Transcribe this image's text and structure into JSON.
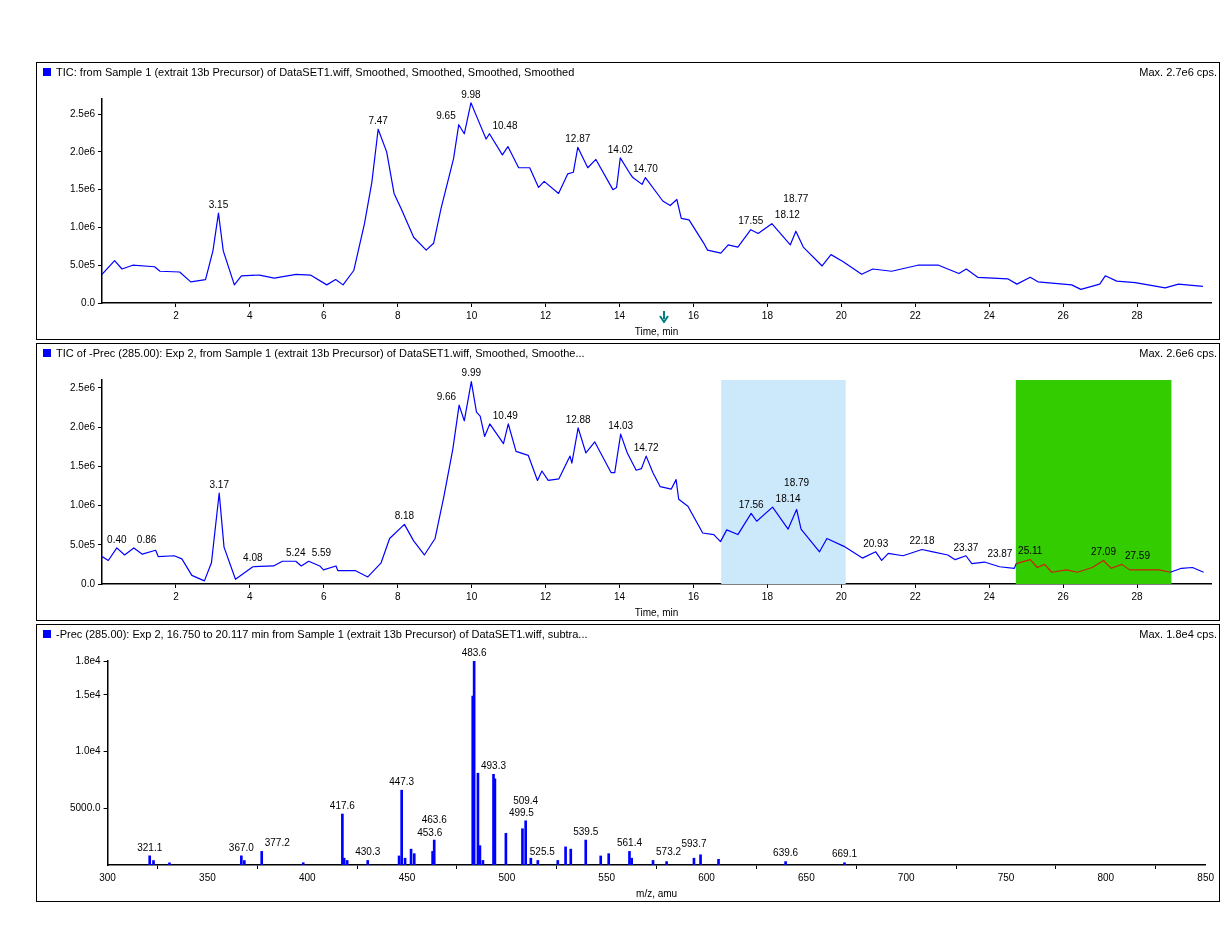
{
  "chart_data": [
    {
      "type": "line",
      "title": "TIC: from Sample 1 (extrait 13b Precursor) of DataSET1.wiff, Smoothed, Smoothed, Smoothed, Smoothed",
      "xlabel": "Time, min",
      "marker": "none",
      "series": [
        {
          "color": "#0000ff",
          "x": [
            0,
            0.34,
            0.54,
            0.83,
            1.42,
            1.57,
            2.1,
            2.4,
            2.8,
            3.0,
            3.15,
            3.28,
            3.58,
            3.77,
            4.26,
            4.66,
            5.25,
            5.64,
            6.08,
            6.32,
            6.52,
            6.81,
            7.1,
            7.3,
            7.47,
            7.7,
            7.9,
            8.09,
            8.43,
            8.77,
            8.97,
            9.17,
            9.51,
            9.65,
            9.8,
            9.98,
            10.15,
            10.39,
            10.48,
            10.83,
            10.98,
            11.27,
            11.57,
            11.81,
            11.96,
            12.35,
            12.6,
            12.75,
            12.87,
            13.14,
            13.36,
            13.82,
            13.92,
            14.02,
            14.26,
            14.36,
            14.61,
            14.7,
            15.17,
            15.37,
            15.55,
            15.67,
            15.88,
            16.28,
            16.38,
            16.74,
            16.94,
            17.2,
            17.55,
            17.75,
            18.12,
            18.62,
            18.77,
            18.97,
            19.48,
            19.72,
            20.04,
            20.55,
            20.85,
            21.36,
            22.07,
            22.63,
            23.18,
            23.38,
            23.69,
            24.5,
            24.75,
            25.11,
            25.32,
            26.23,
            26.48,
            26.99,
            27.14,
            27.45,
            27.95,
            28.76,
            29.12,
            29.78
          ],
          "values": [
            380000,
            560000,
            450000,
            500000,
            480000,
            420000,
            410000,
            280000,
            310000,
            690000,
            1190000,
            690000,
            240000,
            360000,
            370000,
            330000,
            380000,
            370000,
            240000,
            310000,
            240000,
            430000,
            1050000,
            1600000,
            2300000,
            2000000,
            1450000,
            1250000,
            870000,
            700000,
            790000,
            1250000,
            1910000,
            2360000,
            2240000,
            2650000,
            2450000,
            2170000,
            2240000,
            1960000,
            2070000,
            1790000,
            1790000,
            1530000,
            1610000,
            1450000,
            1710000,
            1730000,
            2060000,
            1790000,
            1900000,
            1500000,
            1530000,
            1920000,
            1730000,
            1660000,
            1570000,
            1660000,
            1350000,
            1290000,
            1370000,
            1120000,
            1100000,
            790000,
            700000,
            660000,
            770000,
            740000,
            970000,
            920000,
            1050000,
            770000,
            950000,
            740000,
            490000,
            640000,
            550000,
            380000,
            450000,
            420000,
            500000,
            500000,
            390000,
            450000,
            340000,
            320000,
            250000,
            340000,
            280000,
            240000,
            180000,
            250000,
            360000,
            290000,
            270000,
            200000,
            250000,
            220000
          ]
        }
      ],
      "xlim": [
        0,
        30
      ],
      "xticks": [
        2,
        4,
        6,
        8,
        10,
        12,
        14,
        16,
        18,
        20,
        22,
        24,
        26,
        28
      ],
      "ylim": [
        0,
        2700000
      ],
      "yticks": [
        {
          "value": 0,
          "label": "0.0"
        },
        {
          "value": 500000,
          "label": "5.0e5"
        },
        {
          "value": 1000000,
          "label": "1.0e6"
        },
        {
          "value": 1500000,
          "label": "1.5e6"
        },
        {
          "value": 2000000,
          "label": "2.0e6"
        },
        {
          "value": 2500000,
          "label": "2.5e6"
        }
      ],
      "annotations": [
        "Max. 2.7e6 cps.",
        {
          "text": "3.15",
          "x": 3.15,
          "y": 1190000
        },
        {
          "text": "7.47",
          "x": 7.47,
          "y": 2300000
        },
        {
          "text": "9.65",
          "x": 9.65,
          "y": 2360000
        },
        {
          "text": "9.98",
          "x": 9.98,
          "y": 2650000
        },
        {
          "text": "10.48",
          "x": 10.48,
          "y": 2240000
        },
        {
          "text": "12.87",
          "x": 12.87,
          "y": 2060000
        },
        {
          "text": "14.02",
          "x": 14.02,
          "y": 1920000
        },
        {
          "text": "14.70",
          "x": 14.7,
          "y": 1660000
        },
        {
          "text": "17.55",
          "x": 17.55,
          "y": 970000
        },
        {
          "text": "18.12",
          "x": 18.12,
          "y": 1050000
        },
        {
          "text": "18.77",
          "x": 18.77,
          "y": 950000
        }
      ]
    },
    {
      "type": "line",
      "title": "TIC of -Prec (285.00): Exp 2, from Sample 1 (extrait 13b Precursor) of DataSET1.wiff, Smoothed, Smoothe...",
      "xlabel": "Time, min",
      "marker": "none",
      "series": [
        {
          "color": "#0000ff",
          "x": [
            0,
            0.17,
            0.4,
            0.61,
            0.86,
            1.09,
            1.45,
            1.52,
            1.95,
            2.16,
            2.43,
            2.77,
            2.96,
            3.17,
            3.3,
            3.61,
            4.08,
            4.64,
            4.88,
            5.24,
            5.39,
            5.59,
            5.89,
            5.99,
            6.33,
            6.38,
            6.86,
            7.19,
            7.55,
            7.78,
            8.18,
            8.43,
            8.72,
            9.01,
            9.25,
            9.49,
            9.66,
            9.8,
            9.99,
            10.13,
            10.23,
            10.35,
            10.49,
            10.86,
            10.99,
            11.2,
            11.53,
            11.78,
            11.9,
            12.07,
            12.36,
            12.66,
            12.71,
            12.88,
            13.09,
            13.33,
            13.77,
            13.87,
            14.03,
            14.21,
            14.45,
            14.59,
            14.72,
            14.9,
            15.1,
            15.4,
            15.53,
            15.6,
            15.85,
            16.25,
            16.55,
            16.73,
            16.9,
            17.2,
            17.56,
            17.71,
            18.14,
            18.56,
            18.79,
            18.91,
            19.41,
            19.61,
            20.07,
            20.57,
            20.93,
            21.09,
            21.27,
            21.67,
            22.18,
            22.48,
            22.88,
            23.08,
            23.37,
            23.53,
            23.87,
            24.28,
            24.68,
            24.73,
            26.8,
            28.9,
            29.2,
            29.5,
            29.8
          ],
          "values": [
            350000,
            300000,
            460000,
            370000,
            460000,
            380000,
            430000,
            350000,
            360000,
            320000,
            110000,
            40000,
            270000,
            1160000,
            470000,
            60000,
            220000,
            230000,
            290000,
            290000,
            230000,
            290000,
            230000,
            180000,
            230000,
            170000,
            170000,
            90000,
            270000,
            580000,
            760000,
            550000,
            370000,
            580000,
            1120000,
            1720000,
            2280000,
            2080000,
            2580000,
            2190000,
            2140000,
            1880000,
            2040000,
            1790000,
            2040000,
            1690000,
            1640000,
            1320000,
            1440000,
            1320000,
            1340000,
            1630000,
            1540000,
            1990000,
            1670000,
            1810000,
            1420000,
            1420000,
            1910000,
            1670000,
            1450000,
            1470000,
            1630000,
            1420000,
            1240000,
            1210000,
            1330000,
            1080000,
            990000,
            650000,
            630000,
            540000,
            690000,
            630000,
            900000,
            800000,
            980000,
            700000,
            950000,
            700000,
            410000,
            580000,
            480000,
            330000,
            410000,
            300000,
            390000,
            360000,
            440000,
            410000,
            370000,
            310000,
            360000,
            260000,
            280000,
            220000,
            200000,
            260000,
            null,
            150000,
            200000,
            210000,
            150000
          ]
        },
        {
          "color": "#cc2200",
          "x": [
            24.73,
            25.11,
            25.3,
            25.5,
            25.69,
            26.09,
            26.39,
            26.79,
            27.09,
            27.3,
            27.59,
            27.8,
            28.6,
            28.9
          ],
          "values": [
            260000,
            310000,
            210000,
            250000,
            150000,
            180000,
            150000,
            210000,
            300000,
            200000,
            250000,
            180000,
            180000,
            150000
          ]
        }
      ],
      "bands": [
        {
          "axis": "x",
          "from": 16.75,
          "to": 20.117,
          "color": "#cce8fb"
        },
        {
          "axis": "x",
          "from": 24.72,
          "to": 28.93,
          "color": "#33cc00"
        }
      ],
      "xlim": [
        0,
        30
      ],
      "xticks": [
        2,
        4,
        6,
        8,
        10,
        12,
        14,
        16,
        18,
        20,
        22,
        24,
        26,
        28
      ],
      "ylim": [
        0,
        2600000
      ],
      "yticks": [
        {
          "value": 0,
          "label": "0.0"
        },
        {
          "value": 500000,
          "label": "5.0e5"
        },
        {
          "value": 1000000,
          "label": "1.0e6"
        },
        {
          "value": 1500000,
          "label": "1.5e6"
        },
        {
          "value": 2000000,
          "label": "2.0e6"
        },
        {
          "value": 2500000,
          "label": "2.5e6"
        }
      ],
      "annotations": [
        "Max. 2.6e6 cps.",
        {
          "text": "0.40",
          "x": 0.4,
          "y": 460000
        },
        {
          "text": "0.86",
          "x": 0.86,
          "y": 460000
        },
        {
          "text": "3.17",
          "x": 3.17,
          "y": 1160000
        },
        {
          "text": "4.08",
          "x": 4.08,
          "y": 220000
        },
        {
          "text": "5.24",
          "x": 5.24,
          "y": 290000
        },
        {
          "text": "5.59",
          "x": 5.59,
          "y": 290000
        },
        {
          "text": "8.18",
          "x": 8.18,
          "y": 760000
        },
        {
          "text": "9.66",
          "x": 9.66,
          "y": 2280000
        },
        {
          "text": "9.99",
          "x": 9.99,
          "y": 2580000
        },
        {
          "text": "10.49",
          "x": 10.49,
          "y": 2040000
        },
        {
          "text": "12.88",
          "x": 12.88,
          "y": 1990000
        },
        {
          "text": "14.03",
          "x": 14.03,
          "y": 1910000
        },
        {
          "text": "14.72",
          "x": 14.72,
          "y": 1630000
        },
        {
          "text": "17.56",
          "x": 17.56,
          "y": 900000
        },
        {
          "text": "18.14",
          "x": 18.14,
          "y": 980000
        },
        {
          "text": "18.79",
          "x": 18.79,
          "y": 950000
        },
        {
          "text": "20.93",
          "x": 20.93,
          "y": 410000
        },
        {
          "text": "22.18",
          "x": 22.18,
          "y": 440000
        },
        {
          "text": "23.37",
          "x": 23.37,
          "y": 360000
        },
        {
          "text": "23.87",
          "x": 23.87,
          "y": 280000
        },
        {
          "text": "25.11",
          "x": 25.11,
          "y": 310000
        },
        {
          "text": "27.09",
          "x": 27.09,
          "y": 300000
        },
        {
          "text": "27.59",
          "x": 27.59,
          "y": 250000
        }
      ]
    },
    {
      "type": "bar",
      "title": "-Prec (285.00): Exp 2, 16.750 to 20.117 min from Sample 1 (extrait 13b Precursor) of DataSET1.wiff, subtra...",
      "xlabel": "m/z, amu",
      "color": "#0000ff",
      "x": [
        321.1,
        323,
        331,
        367.0,
        368.5,
        377.2,
        398,
        417.6,
        418.5,
        420,
        430.3,
        446,
        447.3,
        449,
        452,
        453.6,
        462.8,
        463.6,
        482.9,
        483.6,
        485.5,
        486.5,
        488,
        493.3,
        494,
        499.5,
        507.8,
        509.4,
        512,
        515.5,
        525.5,
        529.4,
        532,
        539.5,
        547,
        551,
        561.4,
        562.5,
        573.2,
        580,
        593.7,
        597,
        606,
        639.6,
        669.1
      ],
      "values": [
        800,
        400,
        200,
        800,
        400,
        1200,
        200,
        4500,
        600,
        400,
        400,
        800,
        6600,
        600,
        1400,
        1000,
        1200,
        2200,
        14900,
        18000,
        8100,
        1700,
        400,
        8000,
        7600,
        2800,
        3200,
        3900,
        600,
        400,
        400,
        1600,
        1400,
        2200,
        800,
        1000,
        1200,
        600,
        400,
        300,
        600,
        900,
        500,
        300,
        200
      ],
      "xlim": [
        300,
        850
      ],
      "xticks": [
        300,
        350,
        400,
        450,
        500,
        550,
        600,
        650,
        700,
        750,
        800,
        850
      ],
      "ylim": [
        0,
        18000
      ],
      "yticks": [
        {
          "value": 5000,
          "label": "5000.0"
        },
        {
          "value": 10000,
          "label": "1.0e4"
        },
        {
          "value": 15000,
          "label": "1.5e4"
        },
        {
          "value": 18000,
          "label": "1.8e4"
        }
      ],
      "annotations": [
        "Max. 1.8e4 cps.",
        {
          "text": "321.1",
          "x": 321.1,
          "y": 800
        },
        {
          "text": "367.0",
          "x": 367.0,
          "y": 800
        },
        {
          "text": "377.2",
          "x": 377.2,
          "y": 1200
        },
        {
          "text": "417.6",
          "x": 417.6,
          "y": 4500
        },
        {
          "text": "430.3",
          "x": 430.3,
          "y": 400
        },
        {
          "text": "447.3",
          "x": 447.3,
          "y": 6600
        },
        {
          "text": "453.6",
          "x": 453.6,
          "y": 1000
        },
        {
          "text": "463.6",
          "x": 463.6,
          "y": 2200
        },
        {
          "text": "483.6",
          "x": 483.6,
          "y": 18000
        },
        {
          "text": "493.3",
          "x": 493.3,
          "y": 8000
        },
        {
          "text": "499.5",
          "x": 499.5,
          "y": 2800
        },
        {
          "text": "509.4",
          "x": 509.4,
          "y": 3900
        },
        {
          "text": "525.5",
          "x": 525.5,
          "y": 400
        },
        {
          "text": "539.5",
          "x": 539.5,
          "y": 2200
        },
        {
          "text": "561.4",
          "x": 561.4,
          "y": 1200
        },
        {
          "text": "573.2",
          "x": 573.2,
          "y": 400
        },
        {
          "text": "593.7",
          "x": 593.7,
          "y": 600
        },
        {
          "text": "639.6",
          "x": 639.6,
          "y": 300
        },
        {
          "text": "669.1",
          "x": 669.1,
          "y": 200
        }
      ]
    }
  ]
}
